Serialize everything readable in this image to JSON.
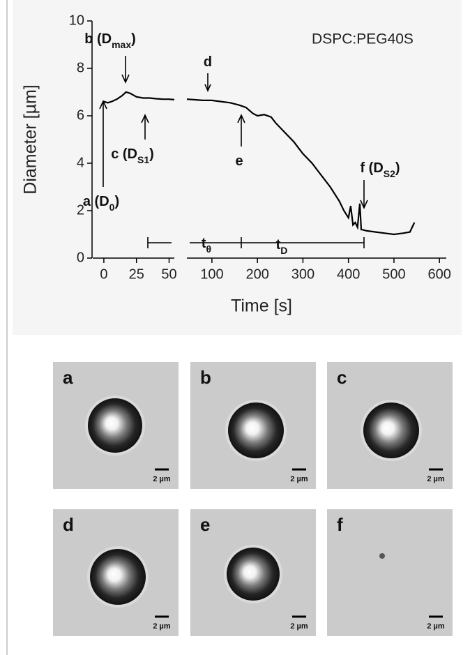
{
  "chart_data": {
    "type": "line",
    "title": "DSPC:PEG40S",
    "xlabel": "Time [s]",
    "ylabel": "Diameter [µm]",
    "color": "#000000",
    "ylim": [
      0,
      10
    ],
    "yticks": [
      0,
      2,
      4,
      6,
      8,
      10
    ],
    "segments": [
      {
        "xlim": [
          -8.5,
          54
        ],
        "xticks": [
          0,
          25,
          50
        ],
        "x": [
          0,
          3,
          6,
          10,
          14,
          17,
          20,
          25,
          30,
          35,
          40,
          45,
          50,
          54
        ],
        "values": [
          6.6,
          6.55,
          6.6,
          6.7,
          6.85,
          7.0,
          6.95,
          6.8,
          6.75,
          6.75,
          6.72,
          6.7,
          6.7,
          6.68
        ]
      },
      {
        "xlim": [
          45,
          615
        ],
        "xticks": [
          100,
          200,
          300,
          400,
          500,
          600
        ],
        "x": [
          45,
          60,
          80,
          100,
          120,
          140,
          160,
          175,
          190,
          200,
          215,
          230,
          240,
          260,
          280,
          300,
          320,
          340,
          360,
          380,
          390,
          400,
          405,
          410,
          415,
          420,
          425,
          428,
          430,
          440,
          460,
          480,
          500,
          520,
          535,
          545
        ],
        "values": [
          6.7,
          6.68,
          6.65,
          6.65,
          6.6,
          6.55,
          6.45,
          6.35,
          6.1,
          6.0,
          6.05,
          5.95,
          5.7,
          5.3,
          4.9,
          4.4,
          4.0,
          3.5,
          3.0,
          2.4,
          2.0,
          1.7,
          2.2,
          1.4,
          1.5,
          1.3,
          2.3,
          1.2,
          1.2,
          1.15,
          1.1,
          1.05,
          1.0,
          1.05,
          1.1,
          1.5
        ]
      }
    ],
    "annotations": [
      {
        "text": "a (D",
        "sub": "0",
        "close": ")"
      },
      {
        "text": "b (D",
        "sub": "max",
        "close": ")"
      },
      {
        "text": "c (D",
        "sub": "S1",
        "close": ")"
      },
      {
        "text": "d"
      },
      {
        "text": "e"
      },
      {
        "text": "f (D",
        "sub": "S2",
        "close": ")"
      },
      {
        "text": "t",
        "sub": "θ"
      },
      {
        "text": "t",
        "sub": "D"
      }
    ]
  },
  "panels": [
    {
      "label": "a",
      "scale": "2 µm"
    },
    {
      "label": "b",
      "scale": "2 µm"
    },
    {
      "label": "c",
      "scale": "2 µm"
    },
    {
      "label": "d",
      "scale": "2 µm"
    },
    {
      "label": "e",
      "scale": "2 µm"
    },
    {
      "label": "f",
      "scale": "2 µm"
    }
  ]
}
